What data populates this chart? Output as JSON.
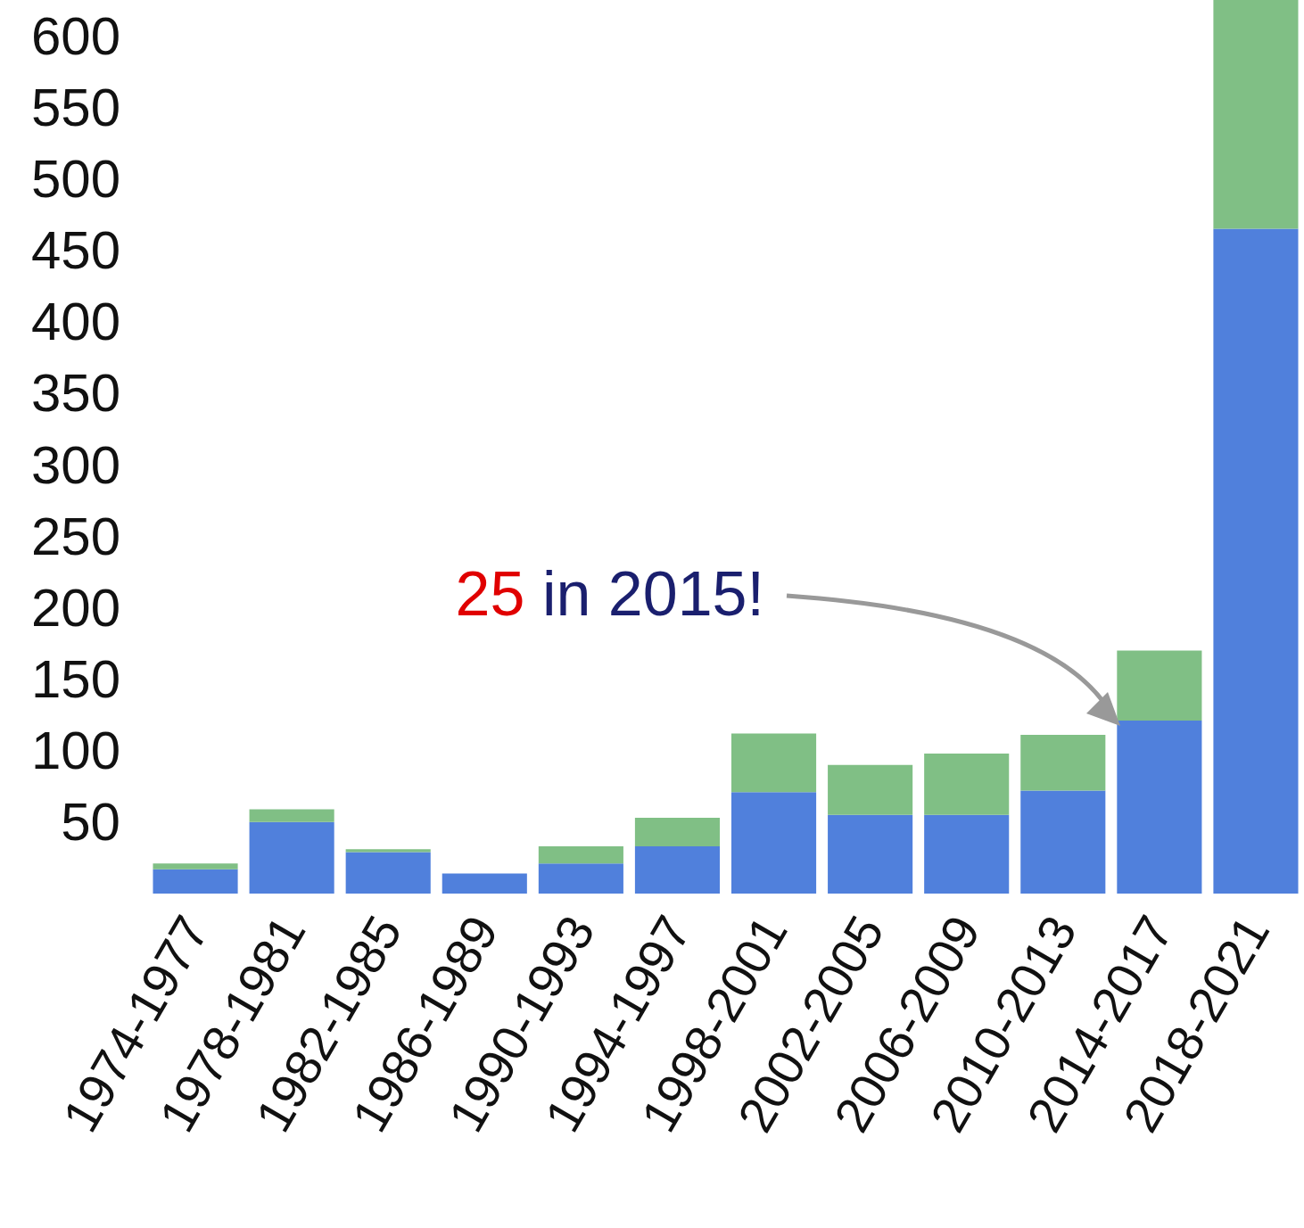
{
  "chart_data": {
    "type": "bar",
    "stacked": true,
    "categories": [
      "1974-1977",
      "1978-1981",
      "1982-1985",
      "1986-1989",
      "1990-1993",
      "1994-1997",
      "1998-2001",
      "2002-2005",
      "2006-2009",
      "2010-2013",
      "2014-2017",
      "2018-2021"
    ],
    "series": [
      {
        "color": "#5080dc",
        "values": [
          17,
          50,
          29,
          14,
          21,
          33,
          71,
          55,
          55,
          72,
          121,
          465
        ]
      },
      {
        "color": "#80bf85",
        "values": [
          4,
          9,
          2,
          0,
          12,
          20,
          41,
          35,
          43,
          39,
          49,
          160
        ]
      }
    ],
    "ylim": [
      0,
      625
    ],
    "yticks": [
      50,
      100,
      150,
      200,
      250,
      300,
      350,
      400,
      450,
      500,
      550,
      600
    ],
    "grid": false,
    "annotations": [
      "25 in 2015!"
    ]
  }
}
